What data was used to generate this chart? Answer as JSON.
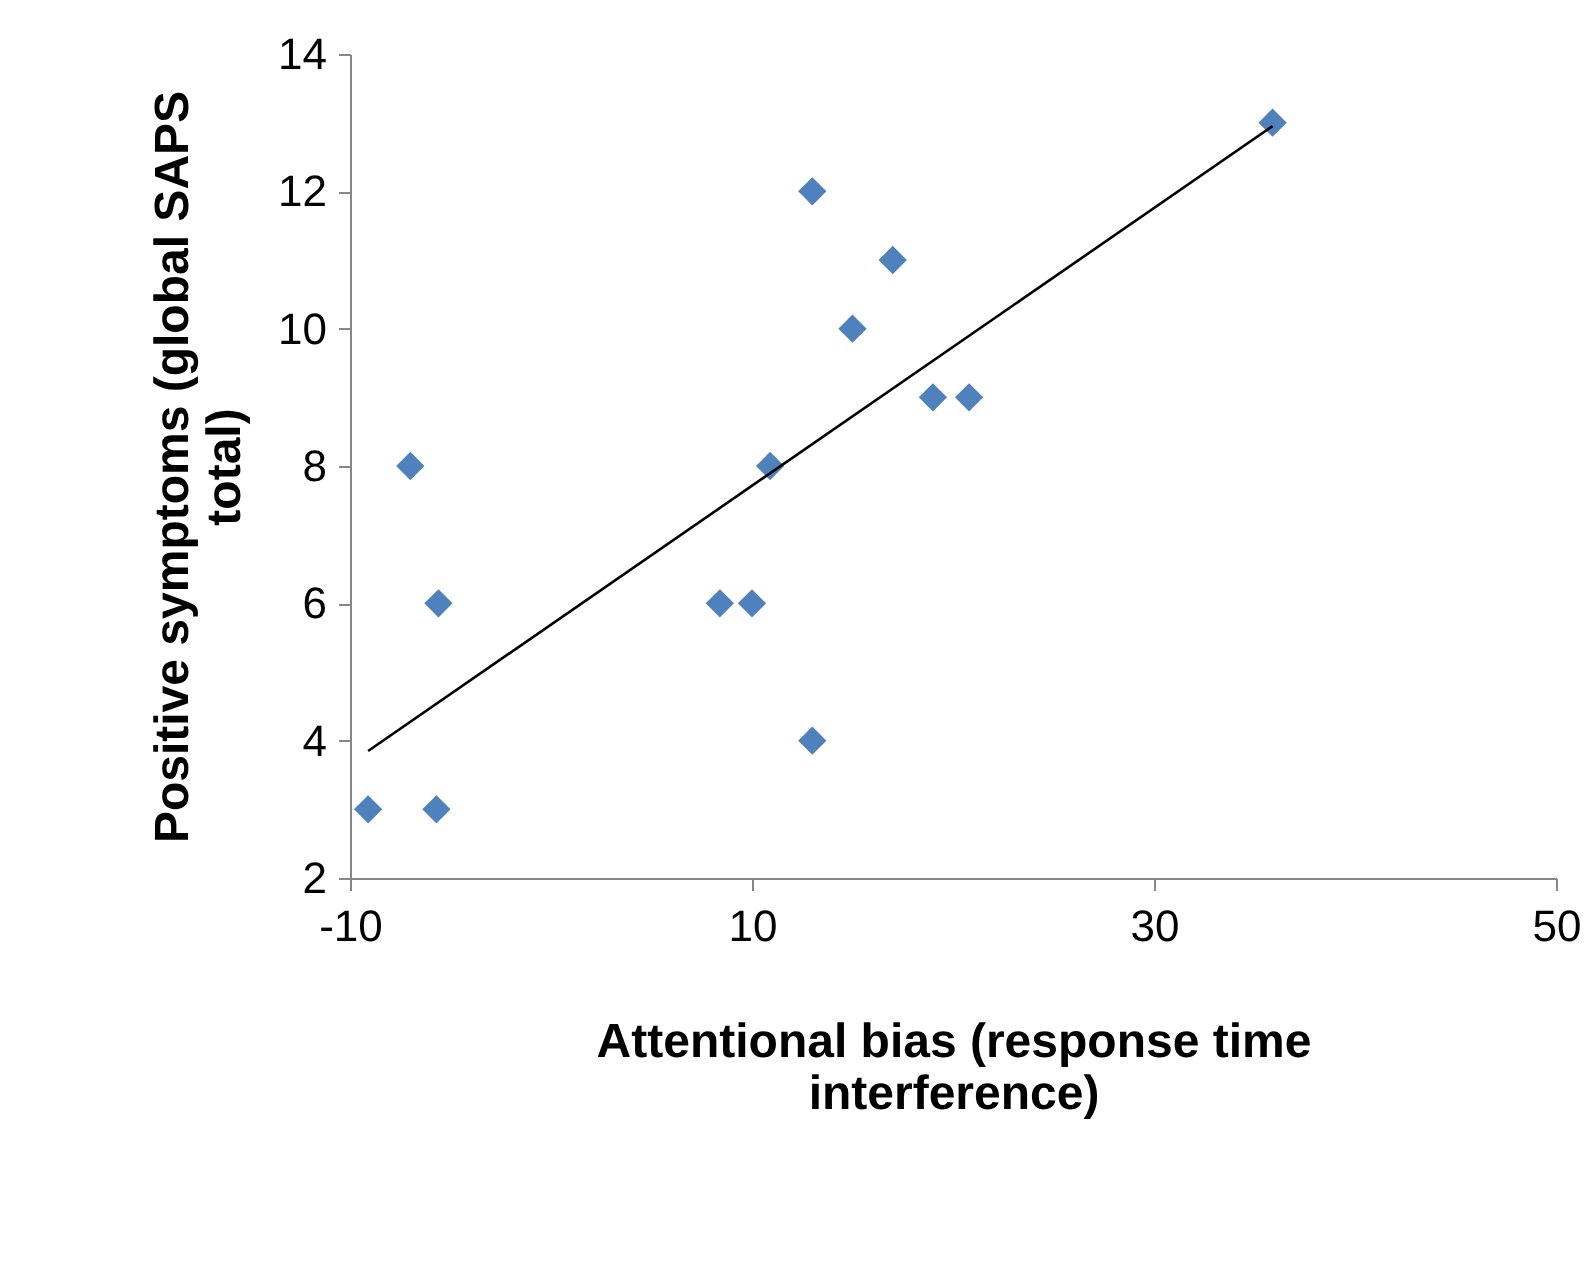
{
  "chart_data": {
    "type": "scatter",
    "xlabel": "Attentional bias (response time interference)",
    "ylabel": "Positive symptoms (global SAPS total)",
    "xlim": [
      -10,
      50
    ],
    "xticks": [
      -10,
      10,
      30,
      50
    ],
    "ylim": [
      2,
      14
    ],
    "yticks": [
      2,
      4,
      6,
      8,
      10,
      12,
      14
    ],
    "grid": false,
    "series": [
      {
        "marker": "diamond",
        "color": "#4f81bd",
        "x": [
          -9.1,
          -7.0,
          -5.6,
          -5.7,
          8.4,
          10,
          10.9,
          13,
          13,
          15,
          17,
          19,
          20.8,
          35.9
        ],
        "values": [
          3,
          8,
          6,
          3,
          6,
          6,
          8,
          4,
          12,
          10,
          11,
          9,
          9,
          13
        ]
      },
      {
        "type": "line",
        "color": "#000000",
        "x": [
          -9.1,
          35.9
        ],
        "values": [
          3.85,
          12.95
        ]
      }
    ]
  }
}
